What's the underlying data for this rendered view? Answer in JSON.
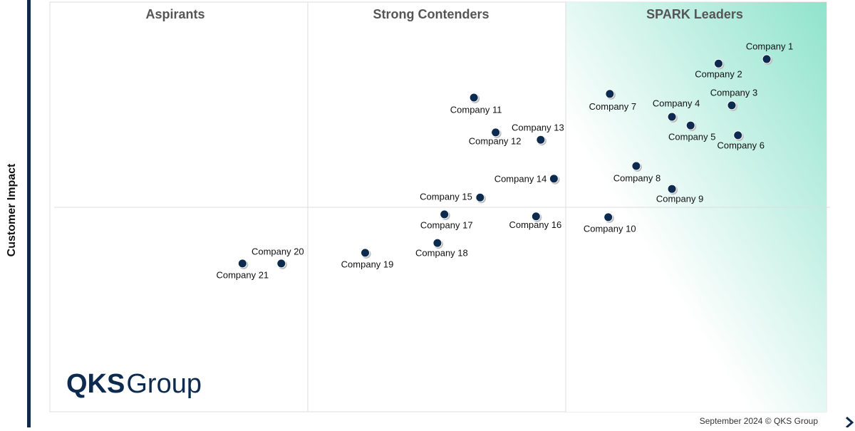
{
  "chart_data": {
    "type": "scatter",
    "y_label": "Customer Impact",
    "quadrants": [
      "Aspirants",
      "Strong Contenders",
      "SPARK Leaders"
    ],
    "labels": [
      "Company 1",
      "Company 2",
      "Company 3",
      "Company 4",
      "Company 5",
      "Company 6",
      "Company 7",
      "Company 8",
      "Company 9",
      "Company 10",
      "Company 11",
      "Company 12",
      "Company 13",
      "Company 14",
      "Company 15",
      "Company 16",
      "Company 17",
      "Company 18",
      "Company 19",
      "Company 20",
      "Company 21"
    ],
    "x": [
      92.3,
      86.1,
      87.8,
      80.1,
      82.5,
      88.6,
      72.1,
      75.5,
      80.1,
      71.9,
      54.6,
      57.4,
      63.2,
      64.9,
      55.4,
      62.6,
      50.8,
      49.9,
      40.6,
      29.8,
      24.8
    ],
    "values": [
      86.1,
      85.0,
      74.8,
      72.0,
      69.9,
      67.5,
      77.6,
      60.0,
      54.4,
      47.5,
      76.7,
      68.2,
      66.4,
      56.9,
      52.3,
      47.7,
      48.2,
      41.2,
      38.8,
      36.2,
      36.2
    ],
    "xlim": [
      0,
      100
    ],
    "ylim": [
      0,
      100
    ],
    "color": "#0d2a4f",
    "logo": {
      "bold": "QKS",
      "text": "Group"
    },
    "footer": "September 2024 © QKS Group"
  }
}
